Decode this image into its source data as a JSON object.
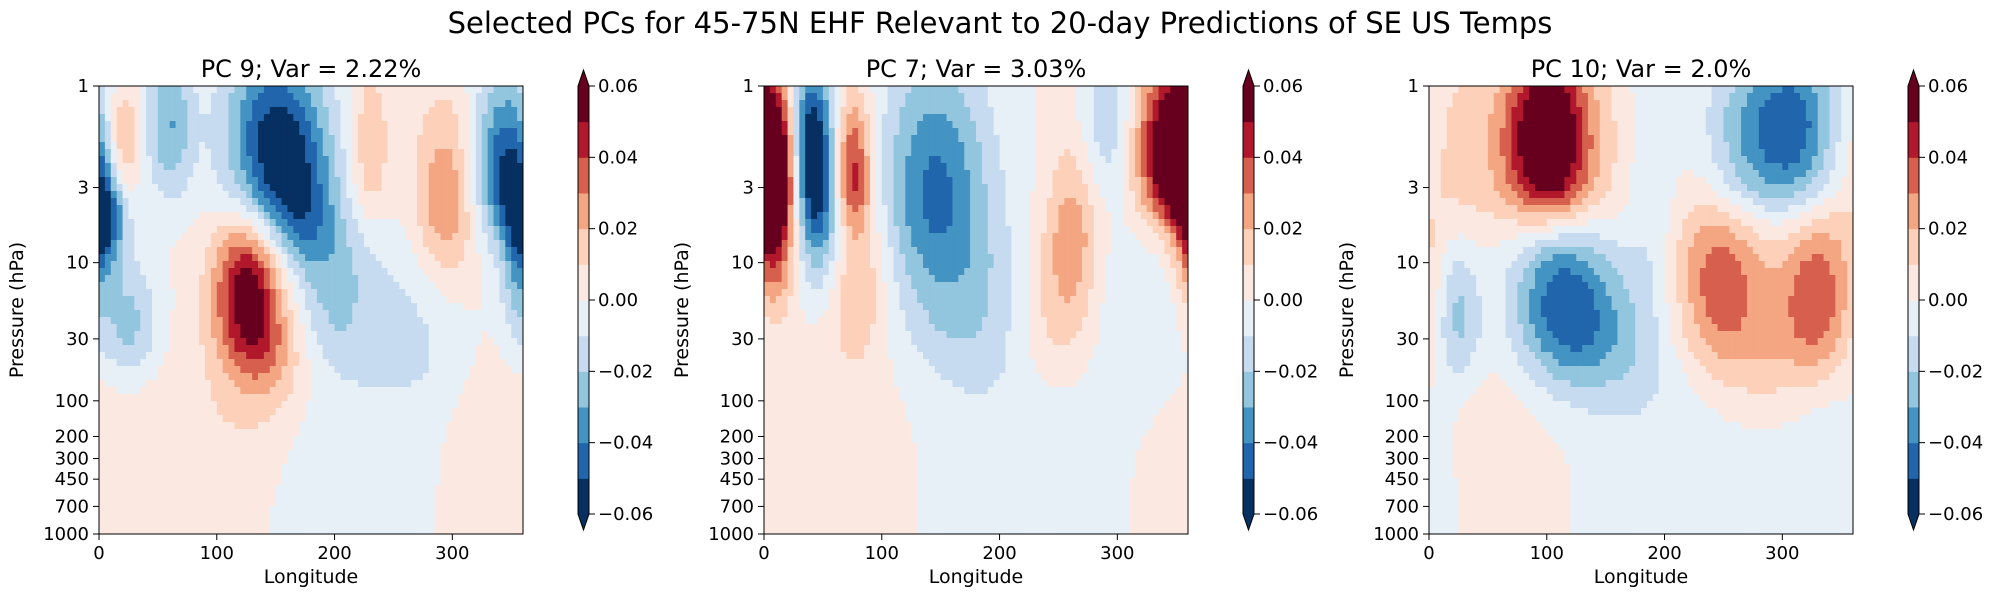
{
  "figure": {
    "suptitle": "Selected PCs for 45-75N EHF Relevant to 20-day Predictions of SE US Temps"
  },
  "chart_data": [
    {
      "type": "heatmap",
      "title": "PC 9; Var = 2.22%",
      "xlabel": "Longitude",
      "ylabel": "Pressure (hPa)",
      "xlim": [
        0,
        360
      ],
      "xticks": [
        0,
        100,
        200,
        300
      ],
      "ylim": [
        1000,
        1
      ],
      "yscale": "custom-pressure",
      "yticks": [
        1,
        3,
        10,
        30,
        100,
        200,
        300,
        450,
        700,
        1000
      ],
      "colorbar": {
        "cmap": "RdBu_r",
        "range": [
          -0.06,
          0.06
        ],
        "ticks": [
          -0.06,
          -0.04,
          -0.02,
          0.0,
          0.02,
          0.04,
          0.06
        ],
        "extend": "both"
      },
      "features": [
        {
          "lon": 20,
          "lev": 1.8,
          "v": 0.03,
          "w": 10,
          "h": 0.18
        },
        {
          "lon": 4,
          "lev": 5,
          "v": -0.045,
          "w": 12,
          "h": 0.22
        },
        {
          "lon": 60,
          "lev": 1.5,
          "v": -0.03,
          "w": 14,
          "h": 0.25
        },
        {
          "lon": 150,
          "lev": 1.8,
          "v": -0.055,
          "w": 30,
          "h": 0.32
        },
        {
          "lon": 170,
          "lev": 5,
          "v": -0.03,
          "w": 22,
          "h": 0.28
        },
        {
          "lon": 200,
          "lev": 14,
          "v": -0.02,
          "w": 22,
          "h": 0.4
        },
        {
          "lon": 125,
          "lev": 14,
          "v": 0.05,
          "w": 20,
          "h": 0.33
        },
        {
          "lon": 140,
          "lev": 40,
          "v": 0.025,
          "w": 24,
          "h": 0.35
        },
        {
          "lon": 230,
          "lev": 2,
          "v": 0.02,
          "w": 12,
          "h": 0.3
        },
        {
          "lon": 295,
          "lev": 4,
          "v": 0.032,
          "w": 20,
          "h": 0.38
        },
        {
          "lon": 345,
          "lev": 2.5,
          "v": -0.05,
          "w": 20,
          "h": 0.32
        },
        {
          "lon": 355,
          "lev": 12,
          "v": -0.02,
          "w": 10,
          "h": 0.3
        },
        {
          "lon": 25,
          "lev": 25,
          "v": -0.025,
          "w": 18,
          "h": 0.3
        },
        {
          "lon": 270,
          "lev": 25,
          "v": -0.012,
          "w": 35,
          "h": 0.5
        },
        {
          "lon": 200,
          "lev": 500,
          "v": -0.008,
          "w": 60,
          "h": 0.9
        },
        {
          "lon": 60,
          "lev": 600,
          "v": 0.008,
          "w": 50,
          "h": 0.9
        },
        {
          "lon": 330,
          "lev": 400,
          "v": 0.008,
          "w": 30,
          "h": 0.8
        },
        {
          "lon": 130,
          "lev": 200,
          "v": 0.006,
          "w": 40,
          "h": 0.6
        }
      ]
    },
    {
      "type": "heatmap",
      "title": "PC 7; Var = 3.03%",
      "xlabel": "Longitude",
      "ylabel": "Pressure (hPa)",
      "xlim": [
        0,
        360
      ],
      "xticks": [
        0,
        100,
        200,
        300
      ],
      "ylim": [
        1000,
        1
      ],
      "yscale": "custom-pressure",
      "yticks": [
        1,
        3,
        10,
        30,
        100,
        200,
        300,
        450,
        700,
        1000
      ],
      "colorbar": {
        "cmap": "RdBu_r",
        "range": [
          -0.06,
          0.06
        ],
        "ticks": [
          -0.06,
          -0.04,
          -0.02,
          0.0,
          0.02,
          0.04,
          0.06
        ],
        "extend": "both"
      },
      "features": [
        {
          "lon": 10,
          "lev": 2.5,
          "v": 0.07,
          "w": 14,
          "h": 0.28
        },
        {
          "lon": 8,
          "lev": 8,
          "v": 0.04,
          "w": 12,
          "h": 0.3
        },
        {
          "lon": 40,
          "lev": 2,
          "v": -0.065,
          "w": 14,
          "h": 0.3
        },
        {
          "lon": 48,
          "lev": 6,
          "v": -0.03,
          "w": 14,
          "h": 0.3
        },
        {
          "lon": 75,
          "lev": 2.5,
          "v": 0.045,
          "w": 12,
          "h": 0.26
        },
        {
          "lon": 80,
          "lev": 12,
          "v": 0.02,
          "w": 18,
          "h": 0.4
        },
        {
          "lon": 145,
          "lev": 3,
          "v": -0.04,
          "w": 32,
          "h": 0.45
        },
        {
          "lon": 170,
          "lev": 18,
          "v": -0.018,
          "w": 40,
          "h": 0.45
        },
        {
          "lon": 262,
          "lev": 6,
          "v": 0.025,
          "w": 16,
          "h": 0.4
        },
        {
          "lon": 245,
          "lev": 20,
          "v": 0.015,
          "w": 24,
          "h": 0.4
        },
        {
          "lon": 350,
          "lev": 2,
          "v": 0.07,
          "w": 16,
          "h": 0.3
        },
        {
          "lon": 325,
          "lev": 2,
          "v": 0.02,
          "w": 14,
          "h": 0.3
        },
        {
          "lon": 290,
          "lev": 1.4,
          "v": -0.018,
          "w": 16,
          "h": 0.25
        },
        {
          "lon": 320,
          "lev": 20,
          "v": -0.008,
          "w": 40,
          "h": 0.5
        },
        {
          "lon": 200,
          "lev": 500,
          "v": -0.008,
          "w": 60,
          "h": 0.9
        },
        {
          "lon": 60,
          "lev": 400,
          "v": 0.008,
          "w": 60,
          "h": 0.9
        }
      ]
    },
    {
      "type": "heatmap",
      "title": "PC 10; Var = 2.0%",
      "xlabel": "Longitude",
      "ylabel": "Pressure (hPa)",
      "xlim": [
        0,
        360
      ],
      "xticks": [
        0,
        100,
        200,
        300
      ],
      "ylim": [
        1000,
        1
      ],
      "yscale": "custom-pressure",
      "yticks": [
        1,
        3,
        10,
        30,
        100,
        200,
        300,
        450,
        700,
        1000
      ],
      "colorbar": {
        "cmap": "RdBu_r",
        "range": [
          -0.06,
          0.06
        ],
        "ticks": [
          -0.06,
          -0.04,
          -0.02,
          0.0,
          0.02,
          0.04,
          0.06
        ],
        "extend": "both"
      },
      "features": [
        {
          "lon": 100,
          "lev": 1.8,
          "v": 0.065,
          "w": 24,
          "h": 0.32
        },
        {
          "lon": 120,
          "lev": 3,
          "v": 0.02,
          "w": 35,
          "h": 0.4
        },
        {
          "lon": 20,
          "lev": 2,
          "v": 0.015,
          "w": 40,
          "h": 0.4
        },
        {
          "lon": 310,
          "lev": 1.6,
          "v": -0.05,
          "w": 30,
          "h": 0.3
        },
        {
          "lon": 260,
          "lev": 2,
          "v": -0.02,
          "w": 25,
          "h": 0.3
        },
        {
          "lon": 110,
          "lev": 14,
          "v": -0.045,
          "w": 30,
          "h": 0.45
        },
        {
          "lon": 150,
          "lev": 30,
          "v": -0.02,
          "w": 35,
          "h": 0.4
        },
        {
          "lon": 25,
          "lev": 22,
          "v": -0.025,
          "w": 14,
          "h": 0.35
        },
        {
          "lon": 190,
          "lev": 3,
          "v": -0.012,
          "w": 14,
          "h": 0.5
        },
        {
          "lon": 245,
          "lev": 12,
          "v": 0.035,
          "w": 28,
          "h": 0.45
        },
        {
          "lon": 330,
          "lev": 16,
          "v": 0.035,
          "w": 22,
          "h": 0.4
        },
        {
          "lon": 285,
          "lev": 40,
          "v": 0.015,
          "w": 35,
          "h": 0.45
        },
        {
          "lon": 220,
          "lev": 300,
          "v": -0.008,
          "w": 60,
          "h": 0.9
        },
        {
          "lon": 340,
          "lev": 500,
          "v": -0.01,
          "w": 30,
          "h": 0.8
        },
        {
          "lon": 60,
          "lev": 150,
          "v": 0.006,
          "w": 50,
          "h": 0.8
        }
      ]
    }
  ]
}
